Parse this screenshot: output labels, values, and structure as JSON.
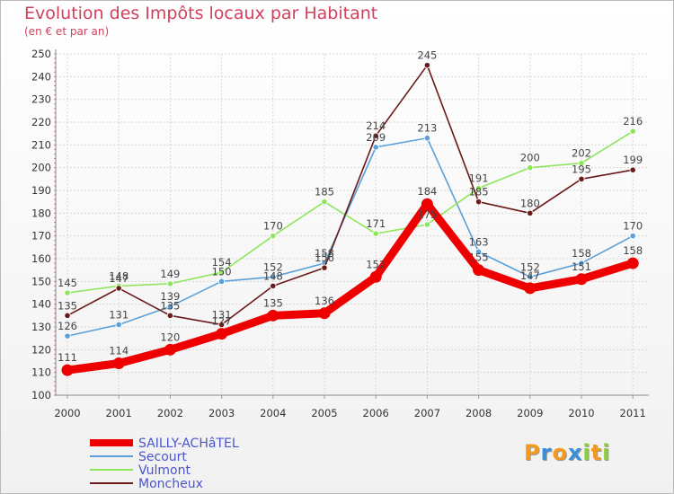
{
  "chart_data": {
    "type": "line",
    "title": "Evolution des Impôts locaux par Habitant",
    "subtitle": "(en € et par an)",
    "xlabel": "",
    "ylabel": "",
    "ylim": [
      100,
      250
    ],
    "yticks": [
      100,
      110,
      120,
      130,
      140,
      150,
      160,
      170,
      180,
      190,
      200,
      210,
      220,
      230,
      240,
      250
    ],
    "categories": [
      "2000",
      "2001",
      "2002",
      "2003",
      "2004",
      "2005",
      "2006",
      "2007",
      "2008",
      "2009",
      "2010",
      "2011"
    ],
    "grid": true,
    "legend_position": "bottom-left",
    "series": [
      {
        "name": "SAILLY-ACHâTEL",
        "color": "#ee0000",
        "thick": true,
        "values": [
          111,
          114,
          120,
          127,
          135,
          136,
          152,
          184,
          155,
          147,
          151,
          158
        ]
      },
      {
        "name": "Secourt",
        "color": "#5ba0d8",
        "thick": false,
        "values": [
          126,
          131,
          139,
          150,
          152,
          158,
          209,
          213,
          163,
          152,
          158,
          170
        ]
      },
      {
        "name": "Vulmont",
        "color": "#8ee65c",
        "thick": false,
        "values": [
          145,
          148,
          149,
          154,
          170,
          185,
          171,
          175,
          191,
          200,
          202,
          216
        ]
      },
      {
        "name": "Moncheux",
        "color": "#6b1a1a",
        "thick": false,
        "values": [
          135,
          147,
          135,
          131,
          148,
          156,
          214,
          245,
          185,
          180,
          195,
          199
        ]
      }
    ]
  },
  "logo": {
    "text": [
      "P",
      "r",
      "o",
      "x",
      "i",
      "t",
      "i"
    ],
    "colors": [
      "#f59a1c",
      "#3b8fd8",
      "#f59a1c",
      "#3b8fd8",
      "#8ccf3a",
      "#f59a1c",
      "#8ccf3a"
    ]
  }
}
